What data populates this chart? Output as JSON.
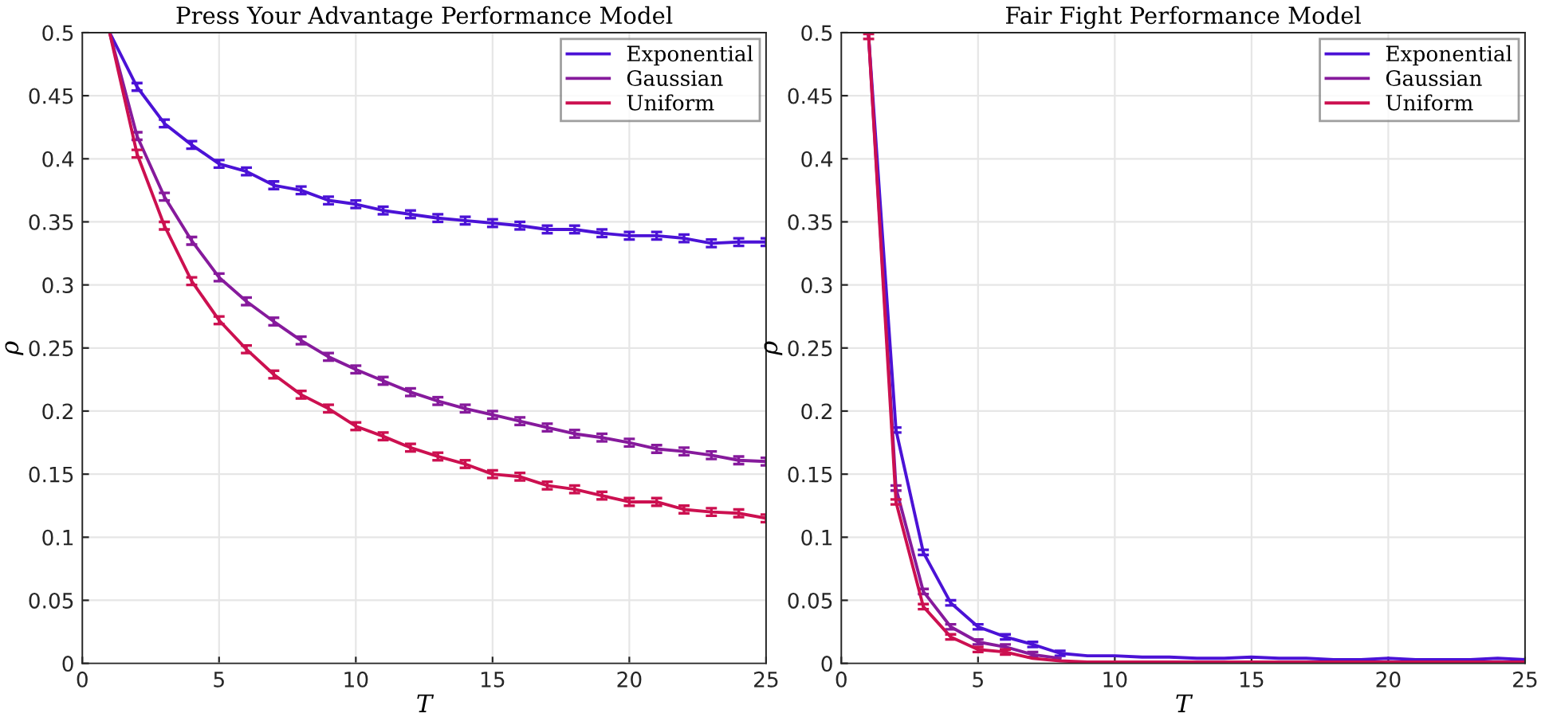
{
  "chart_data": [
    {
      "type": "line",
      "title": "Press Your Advantage Performance Model",
      "xlabel": "T",
      "ylabel": "ρ",
      "x": [
        1,
        2,
        3,
        4,
        5,
        6,
        7,
        8,
        9,
        10,
        11,
        12,
        13,
        14,
        15,
        16,
        17,
        18,
        19,
        20,
        21,
        22,
        23,
        24,
        25
      ],
      "series": [
        {
          "name": "Exponential",
          "color": "#4b12d6",
          "values": [
            0.5,
            0.457,
            0.428,
            0.411,
            0.396,
            0.39,
            0.379,
            0.375,
            0.367,
            0.364,
            0.359,
            0.356,
            0.353,
            0.351,
            0.349,
            0.347,
            0.344,
            0.344,
            0.341,
            0.339,
            0.339,
            0.337,
            0.333,
            0.334,
            0.334
          ],
          "errors": [
            null,
            0.003,
            0.003,
            0.003,
            0.003,
            0.003,
            0.003,
            0.003,
            0.003,
            0.003,
            0.003,
            0.003,
            0.003,
            0.003,
            0.003,
            0.003,
            0.003,
            0.003,
            0.003,
            0.003,
            0.003,
            0.003,
            0.003,
            0.003,
            0.003
          ]
        },
        {
          "name": "Gaussian",
          "color": "#861a9c",
          "values": [
            0.5,
            0.418,
            0.37,
            0.335,
            0.306,
            0.287,
            0.271,
            0.256,
            0.243,
            0.233,
            0.224,
            0.215,
            0.208,
            0.202,
            0.197,
            0.192,
            0.187,
            0.182,
            0.179,
            0.175,
            0.17,
            0.168,
            0.165,
            0.161,
            0.16
          ],
          "errors": [
            null,
            0.003,
            0.003,
            0.003,
            0.003,
            0.003,
            0.003,
            0.003,
            0.003,
            0.003,
            0.003,
            0.003,
            0.003,
            0.003,
            0.003,
            0.003,
            0.003,
            0.003,
            0.003,
            0.003,
            0.003,
            0.003,
            0.003,
            0.003,
            0.003
          ]
        },
        {
          "name": "Uniform",
          "color": "#cc1050",
          "values": [
            0.5,
            0.404,
            0.347,
            0.303,
            0.272,
            0.249,
            0.229,
            0.213,
            0.202,
            0.188,
            0.18,
            0.171,
            0.164,
            0.158,
            0.15,
            0.148,
            0.141,
            0.138,
            0.133,
            0.128,
            0.128,
            0.122,
            0.12,
            0.119,
            0.115
          ],
          "errors": [
            null,
            0.003,
            0.003,
            0.003,
            0.003,
            0.003,
            0.003,
            0.003,
            0.003,
            0.003,
            0.003,
            0.003,
            0.003,
            0.003,
            0.003,
            0.003,
            0.003,
            0.003,
            0.003,
            0.003,
            0.003,
            0.003,
            0.003,
            0.003,
            0.003
          ]
        }
      ],
      "xlim": [
        0,
        25
      ],
      "xticks": [
        0,
        5,
        10,
        15,
        20,
        25
      ],
      "ylim": [
        0,
        0.5
      ],
      "yticks": [
        0,
        0.05,
        0.1,
        0.15,
        0.2,
        0.25,
        0.3,
        0.35,
        0.4,
        0.45,
        0.5
      ],
      "grid": true,
      "legend": "top right",
      "marker": "none",
      "line_style": "solid"
    },
    {
      "type": "line",
      "title": "Fair Fight Performance Model",
      "xlabel": "T",
      "ylabel": "ρ",
      "x": [
        1,
        2,
        3,
        4,
        5,
        6,
        7,
        8,
        9,
        10,
        11,
        12,
        13,
        14,
        15,
        16,
        17,
        18,
        19,
        20,
        21,
        22,
        23,
        24,
        25
      ],
      "series": [
        {
          "name": "Exponential",
          "color": "#4b12d6",
          "values": [
            0.497,
            0.185,
            0.088,
            0.048,
            0.029,
            0.021,
            0.015,
            0.008,
            0.006,
            0.006,
            0.005,
            0.005,
            0.004,
            0.004,
            0.005,
            0.004,
            0.004,
            0.003,
            0.003,
            0.004,
            0.003,
            0.003,
            0.003,
            0.004,
            0.003
          ],
          "errors": [
            null,
            0.002,
            0.002,
            0.002,
            0.002,
            0.002,
            0.002,
            0.002,
            null,
            null,
            null,
            null,
            null,
            null,
            null,
            null,
            null,
            null,
            null,
            null,
            null,
            null,
            null,
            null,
            null
          ]
        },
        {
          "name": "Gaussian",
          "color": "#861a9c",
          "values": [
            0.497,
            0.139,
            0.057,
            0.029,
            0.017,
            0.013,
            0.007,
            0.004,
            null,
            null,
            null,
            null,
            null,
            null,
            null,
            null,
            null,
            null,
            null,
            null,
            null,
            null,
            null,
            null,
            null
          ],
          "errors": [
            null,
            0.002,
            0.002,
            0.002,
            0.002,
            0.002,
            0.002,
            null,
            null,
            null,
            null,
            null,
            null,
            null,
            null,
            null,
            null,
            null,
            null,
            null,
            null,
            null,
            null,
            null,
            null
          ]
        },
        {
          "name": "Uniform",
          "color": "#cc1050",
          "values": [
            0.497,
            0.128,
            0.045,
            0.021,
            0.011,
            0.009,
            0.004,
            0.002,
            0.001,
            0.001,
            0.001,
            0.001,
            0.001,
            0.001,
            0.001,
            0.001,
            0.001,
            0.001,
            0.001,
            0.001,
            0.001,
            0.001,
            0.001,
            0.001,
            0.001
          ],
          "errors": [
            0.002,
            0.002,
            0.002,
            0.002,
            0.002,
            0.002,
            null,
            null,
            null,
            null,
            null,
            null,
            null,
            null,
            null,
            null,
            null,
            null,
            null,
            null,
            null,
            null,
            null,
            null,
            null
          ]
        }
      ],
      "xlim": [
        0,
        25
      ],
      "xticks": [
        0,
        5,
        10,
        15,
        20,
        25
      ],
      "ylim": [
        0,
        0.5
      ],
      "yticks": [
        0,
        0.05,
        0.1,
        0.15,
        0.2,
        0.25,
        0.3,
        0.35,
        0.4,
        0.45,
        0.5
      ],
      "grid": true,
      "legend": "top right",
      "marker": "none",
      "line_style": "solid"
    }
  ]
}
